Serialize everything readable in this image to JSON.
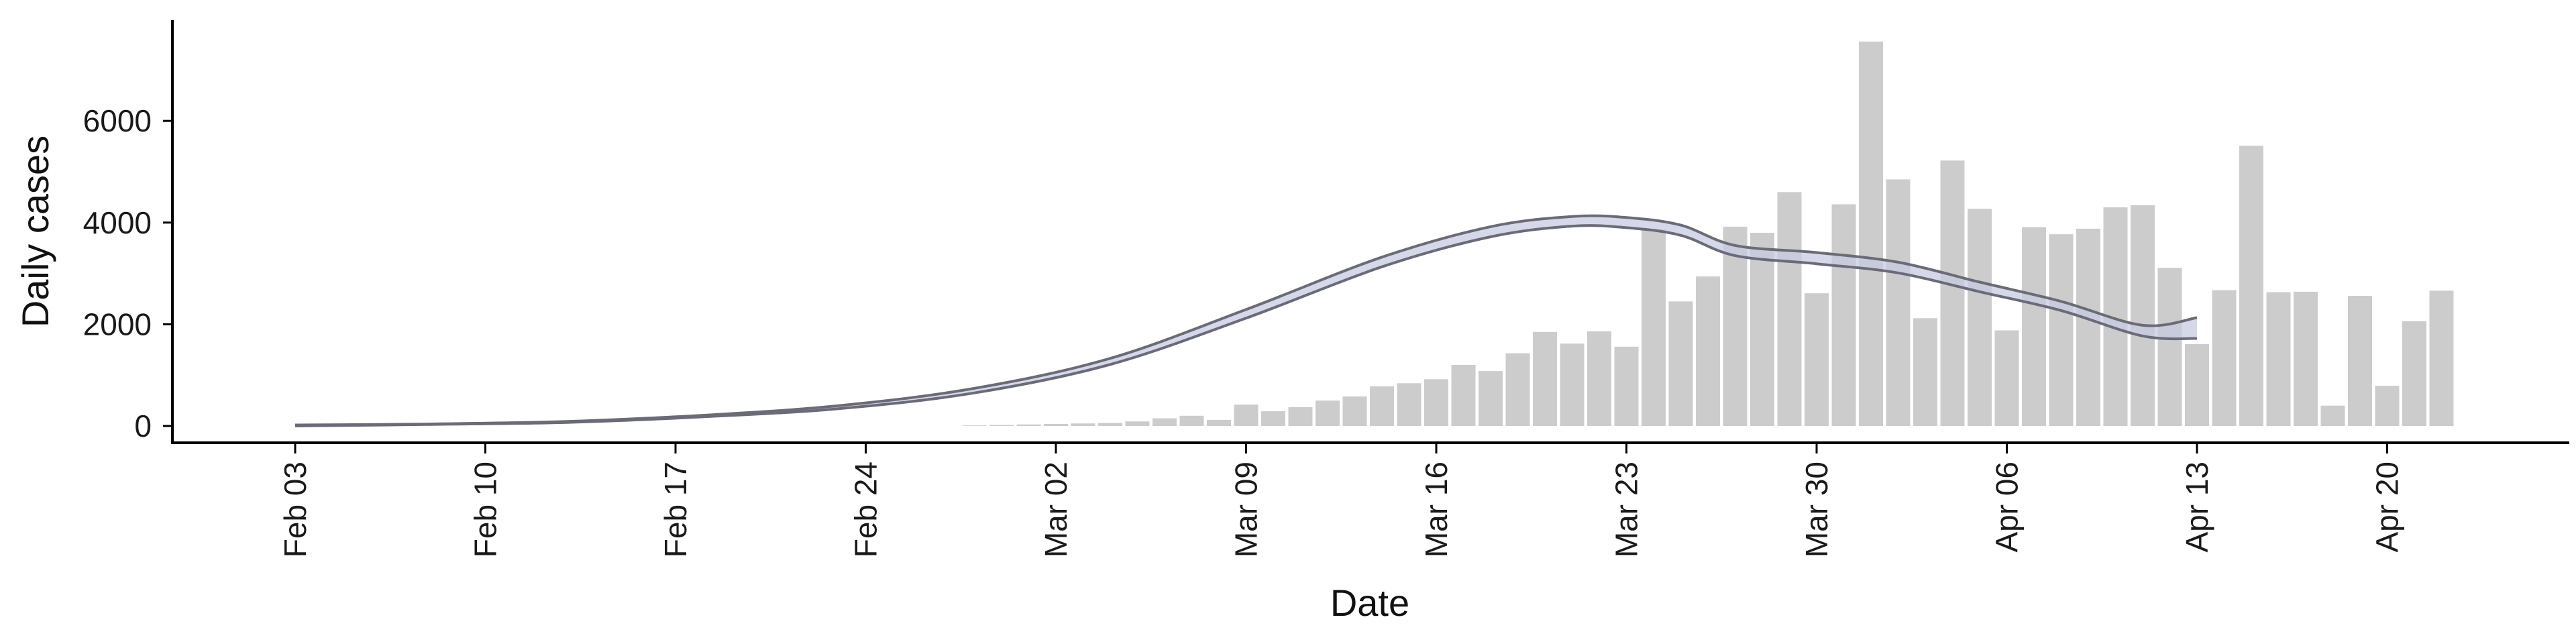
{
  "chart_data": {
    "type": "bar",
    "xlabel": "Date",
    "ylabel": "Daily cases",
    "ylim": [
      -350,
      8000
    ],
    "grid": false,
    "x_tick_labels": [
      "Feb 03",
      "Feb 10",
      "Feb 17",
      "Feb 24",
      "Mar 02",
      "Mar 09",
      "Mar 16",
      "Mar 23",
      "Mar 30",
      "Apr 06",
      "Apr 13",
      "Apr 20"
    ],
    "y_ticks": [
      0,
      2000,
      4000,
      6000
    ],
    "y_tick_labels": [
      "0",
      "2000",
      "4000",
      "6000"
    ],
    "colors": {
      "bars": "#cccccc",
      "lines": "#6b6b78",
      "band": "#c7cbe0",
      "axis": "#000000"
    },
    "series": [
      {
        "type": "bar",
        "x": [
          "Feb 28",
          "Feb 29",
          "Mar 01",
          "Mar 02",
          "Mar 03",
          "Mar 04",
          "Mar 05",
          "Mar 06",
          "Mar 07",
          "Mar 08",
          "Mar 09",
          "Mar 10",
          "Mar 11",
          "Mar 12",
          "Mar 13",
          "Mar 14",
          "Mar 15",
          "Mar 16",
          "Mar 17",
          "Mar 18",
          "Mar 19",
          "Mar 20",
          "Mar 21",
          "Mar 22",
          "Mar 23",
          "Mar 24",
          "Mar 25",
          "Mar 26",
          "Mar 27",
          "Mar 28",
          "Mar 29",
          "Mar 30",
          "Mar 31",
          "Apr 01",
          "Apr 02",
          "Apr 03",
          "Apr 04",
          "Apr 05",
          "Apr 06",
          "Apr 07",
          "Apr 08",
          "Apr 09",
          "Apr 10",
          "Apr 11",
          "Apr 12",
          "Apr 13",
          "Apr 14",
          "Apr 15",
          "Apr 16",
          "Apr 17",
          "Apr 18",
          "Apr 19",
          "Apr 20",
          "Apr 21",
          "Apr 22"
        ],
        "values": [
          10,
          20,
          30,
          40,
          50,
          60,
          90,
          150,
          200,
          120,
          420,
          290,
          370,
          500,
          580,
          780,
          840,
          920,
          1200,
          1080,
          1430,
          1850,
          1620,
          1860,
          1560,
          3870,
          2450,
          2940,
          3920,
          3800,
          4600,
          2610,
          4360,
          7560,
          4850,
          2120,
          5220,
          4270,
          1880,
          3910,
          3770,
          3880,
          4300,
          4340,
          3110,
          1610,
          2670,
          5510,
          2630,
          2640,
          400,
          2560,
          790,
          2060,
          2660
        ]
      },
      {
        "type": "line",
        "name": "upper",
        "x": [
          "Feb 03",
          "Feb 08",
          "Feb 13",
          "Feb 18",
          "Feb 23",
          "Feb 28",
          "Mar 04",
          "Mar 09",
          "Mar 14",
          "Mar 18",
          "Mar 21",
          "Mar 23",
          "Mar 25",
          "Mar 27",
          "Mar 30",
          "Apr 02",
          "Apr 05",
          "Apr 08",
          "Apr 11",
          "Apr 13"
        ],
        "values": [
          20,
          40,
          90,
          210,
          400,
          740,
          1330,
          2290,
          3320,
          3920,
          4120,
          4100,
          3950,
          3550,
          3410,
          3220,
          2830,
          2450,
          1980,
          2130
        ]
      },
      {
        "type": "line",
        "name": "lower",
        "x": [
          "Feb 03",
          "Feb 08",
          "Feb 13",
          "Feb 18",
          "Feb 23",
          "Feb 28",
          "Mar 04",
          "Mar 09",
          "Mar 14",
          "Mar 18",
          "Mar 21",
          "Mar 23",
          "Mar 25",
          "Mar 27",
          "Mar 30",
          "Apr 02",
          "Apr 05",
          "Apr 08",
          "Apr 11",
          "Apr 13"
        ],
        "values": [
          0,
          30,
          70,
          180,
          340,
          650,
          1210,
          2120,
          3130,
          3720,
          3930,
          3900,
          3750,
          3350,
          3190,
          3010,
          2640,
          2270,
          1770,
          1720
        ]
      }
    ]
  }
}
